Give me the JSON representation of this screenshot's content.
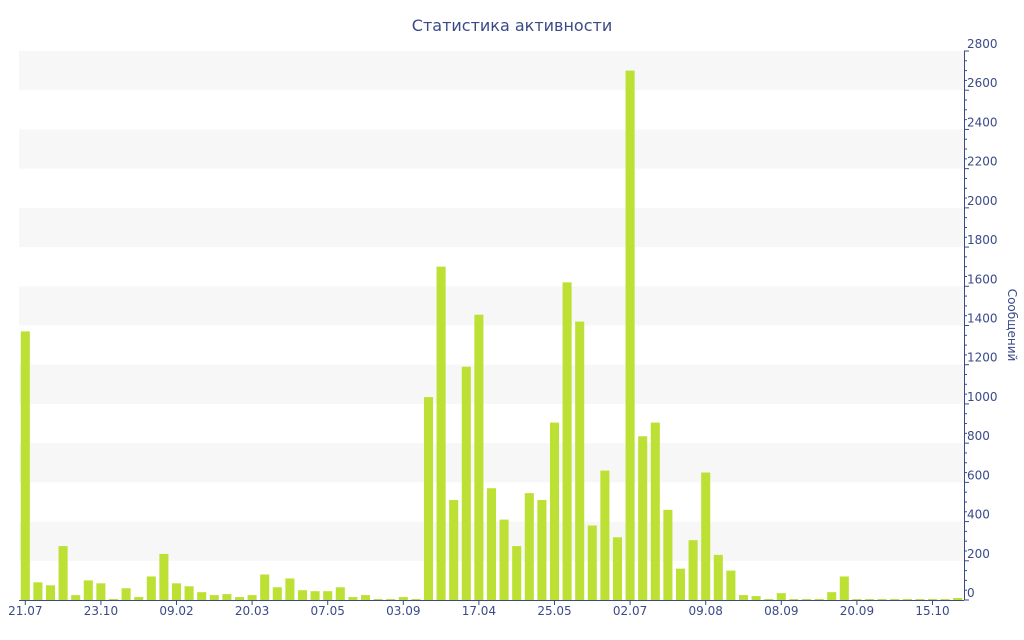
{
  "chart_data": {
    "type": "bar",
    "title": "Статистика активности",
    "xlabel": "",
    "ylabel": "Сообщений",
    "ylim": [
      0,
      2800
    ],
    "yticks": [
      0,
      200,
      400,
      600,
      800,
      1000,
      1200,
      1400,
      1600,
      1800,
      2000,
      2200,
      2400,
      2600,
      2800
    ],
    "y_axis_position": "right",
    "grid": "alternating horizontal bands",
    "legend": "none",
    "colors": {
      "bar": "#bde035",
      "band": "#f7f7f7",
      "axis": "#3b4a87",
      "text": "#3b4a87"
    },
    "x_tick_labels": [
      {
        "index": 0,
        "label": "21.07"
      },
      {
        "index": 6,
        "label": "23.10"
      },
      {
        "index": 12,
        "label": "09.02"
      },
      {
        "index": 18,
        "label": "20.03"
      },
      {
        "index": 24,
        "label": "07.05"
      },
      {
        "index": 30,
        "label": "03.09"
      },
      {
        "index": 36,
        "label": "17.04"
      },
      {
        "index": 42,
        "label": "25.05"
      },
      {
        "index": 48,
        "label": "02.07"
      },
      {
        "index": 54,
        "label": "09.08"
      },
      {
        "index": 60,
        "label": "08.09"
      },
      {
        "index": 66,
        "label": "20.09"
      },
      {
        "index": 72,
        "label": "15.10"
      }
    ],
    "values": [
      1370,
      90,
      75,
      275,
      25,
      100,
      85,
      5,
      60,
      15,
      120,
      235,
      85,
      70,
      40,
      25,
      30,
      15,
      25,
      130,
      65,
      110,
      50,
      45,
      45,
      65,
      15,
      25,
      5,
      5,
      15,
      5,
      1035,
      1700,
      510,
      1190,
      1455,
      570,
      410,
      275,
      545,
      510,
      905,
      1620,
      1420,
      380,
      660,
      320,
      2700,
      835,
      905,
      460,
      160,
      305,
      650,
      230,
      150,
      25,
      20,
      5,
      35,
      5,
      5,
      5,
      40,
      120,
      5,
      5,
      5,
      5,
      5,
      5,
      5,
      5,
      10
    ]
  }
}
